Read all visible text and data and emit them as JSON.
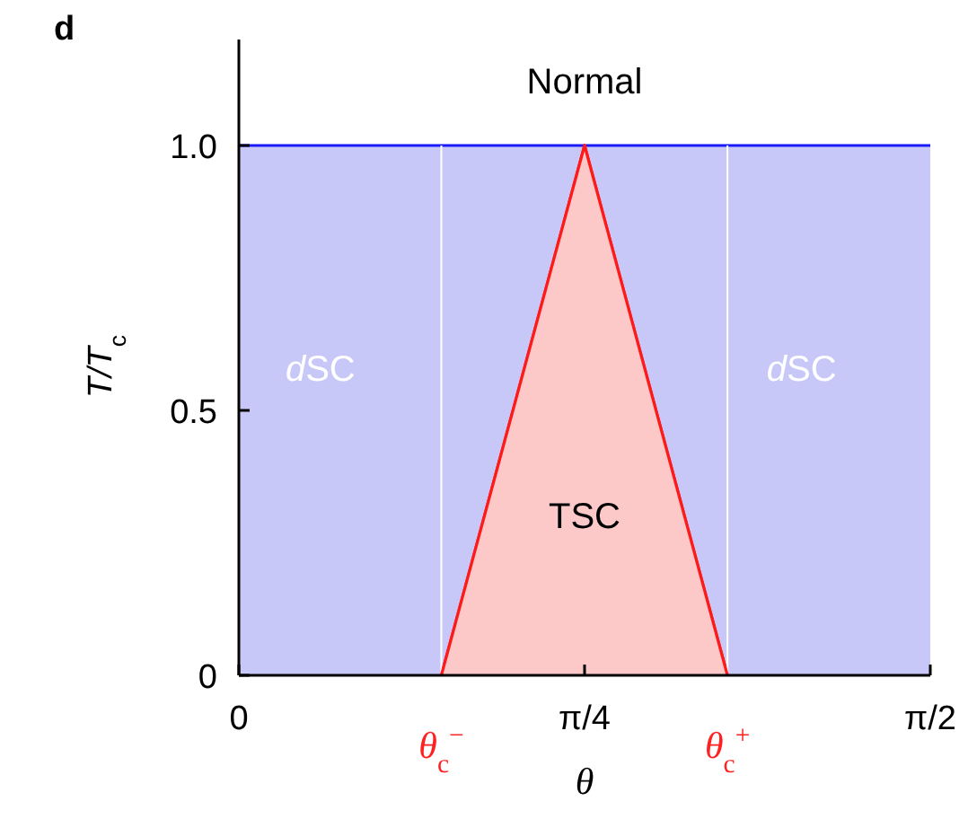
{
  "chart_data": {
    "type": "area",
    "title": "d",
    "xlabel": "θ",
    "ylabel": "T/T$_{c}$",
    "xlim": [
      0,
      1.5708
    ],
    "ylim": [
      0,
      1.2
    ],
    "xticks": [
      {
        "value": 0,
        "label": "0"
      },
      {
        "value": 0.7854,
        "label": "π/4"
      },
      {
        "value": 1.5708,
        "label": "π/2"
      }
    ],
    "yticks": [
      {
        "value": 0,
        "label": "0"
      },
      0.5,
      {
        "value": 1,
        "label": "1.0"
      }
    ],
    "series": [
      {
        "color": "#c8c8f8",
        "x": [
          0,
          1.5708
        ],
        "values": [
          1,
          1
        ]
      },
      {
        "color": "#fcc8c8",
        "x": [
          0.46,
          0.7854,
          1.11
        ],
        "values": [
          0,
          1,
          0
        ]
      }
    ],
    "ref_lines": [
      {
        "axis": "x",
        "value": 0.46,
        "label": "θ$_{c}$$^{−}$",
        "color": "#ffffff"
      },
      {
        "axis": "x",
        "value": 1.11,
        "label": "θ$_{c}$$^{+}$",
        "color": "#ffffff"
      }
    ],
    "annotations": [
      "Normal",
      "dSC",
      "dSC",
      "TSC"
    ]
  }
}
